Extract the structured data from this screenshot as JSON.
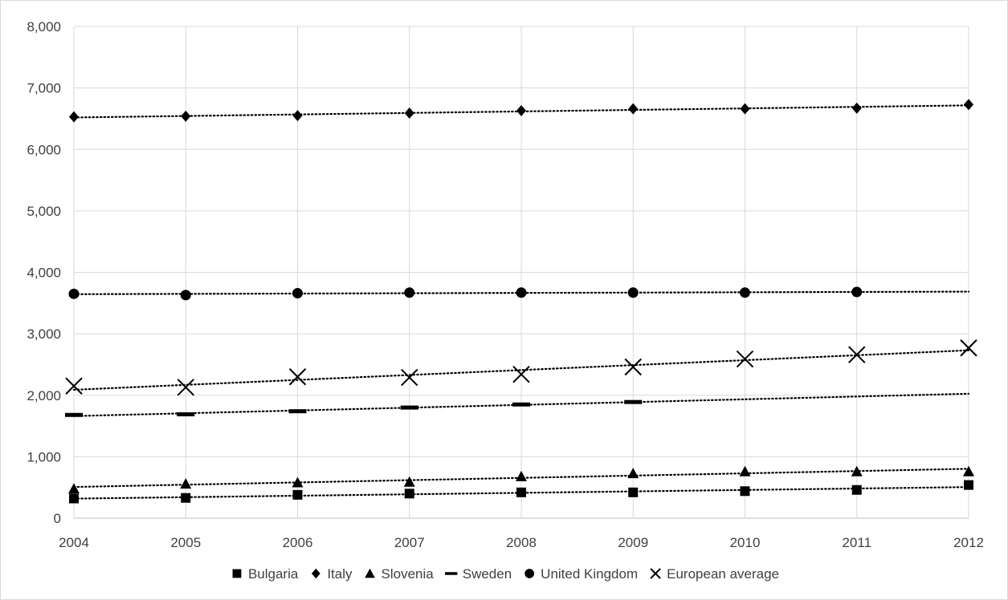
{
  "chart_data": {
    "type": "scatter",
    "title": "",
    "xlabel": "",
    "ylabel": "",
    "x": [
      2004,
      2005,
      2006,
      2007,
      2008,
      2009,
      2010,
      2011,
      2012
    ],
    "x_tick_labels": [
      "2004",
      "2005",
      "2006",
      "2007",
      "2008",
      "2009",
      "2010",
      "2011",
      "2012"
    ],
    "xlim": [
      2004,
      2012
    ],
    "ylim": [
      0,
      8000
    ],
    "y_ticks": [
      0,
      1000,
      2000,
      3000,
      4000,
      5000,
      6000,
      7000,
      8000
    ],
    "y_tick_labels": [
      "0",
      "1,000",
      "2,000",
      "3,000",
      "4,000",
      "5,000",
      "6,000",
      "7,000",
      "8,000"
    ],
    "grid": true,
    "trendlines": "linear, dotted",
    "legend_position": "bottom",
    "series": [
      {
        "name": "Bulgaria",
        "marker": "square",
        "color": "#000000",
        "values": [
          320,
          330,
          380,
          400,
          420,
          420,
          440,
          460,
          540
        ]
      },
      {
        "name": "Italy",
        "marker": "diamond",
        "color": "#000000",
        "values": [
          6530,
          6540,
          6550,
          6590,
          6630,
          6660,
          6660,
          6670,
          6730
        ]
      },
      {
        "name": "Slovenia",
        "marker": "triangle",
        "color": "#000000",
        "values": [
          480,
          560,
          580,
          590,
          680,
          730,
          760,
          760,
          760
        ]
      },
      {
        "name": "Sweden",
        "marker": "dash",
        "color": "#000000",
        "values": [
          1680,
          1690,
          1740,
          1800,
          1850,
          1890,
          null,
          null,
          null
        ],
        "trend_extends_to": 2012
      },
      {
        "name": "United Kingdom",
        "marker": "circle",
        "color": "#000000",
        "values": [
          3650,
          3630,
          3660,
          3670,
          3670,
          3670,
          3670,
          3680,
          null
        ],
        "trend_extends_to": 2012
      },
      {
        "name": "European average",
        "marker": "x",
        "color": "#000000",
        "values": [
          2150,
          2130,
          2300,
          2290,
          2340,
          2460,
          2590,
          2660,
          2770
        ]
      }
    ]
  }
}
